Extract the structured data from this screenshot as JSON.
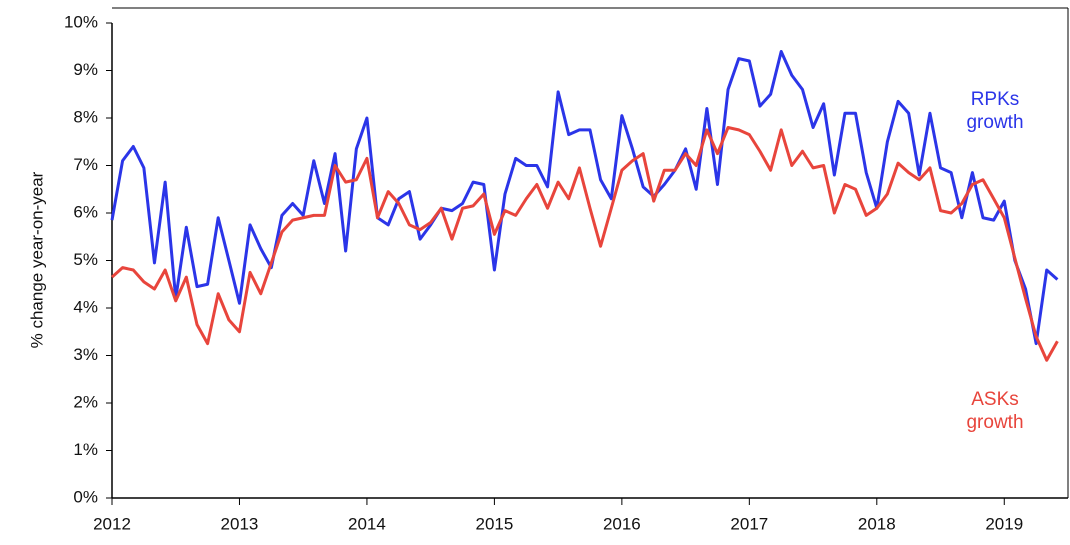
{
  "chart_data": {
    "type": "line",
    "y_label": "% change year-on-year",
    "x": [
      2012,
      2012.083,
      2012.167,
      2012.25,
      2012.333,
      2012.417,
      2012.5,
      2012.583,
      2012.667,
      2012.75,
      2012.833,
      2012.917,
      2013,
      2013.083,
      2013.167,
      2013.25,
      2013.333,
      2013.417,
      2013.5,
      2013.583,
      2013.667,
      2013.75,
      2013.833,
      2013.917,
      2014,
      2014.083,
      2014.167,
      2014.25,
      2014.333,
      2014.417,
      2014.5,
      2014.583,
      2014.667,
      2014.75,
      2014.833,
      2014.917,
      2015,
      2015.083,
      2015.167,
      2015.25,
      2015.333,
      2015.417,
      2015.5,
      2015.583,
      2015.667,
      2015.75,
      2015.833,
      2015.917,
      2016,
      2016.083,
      2016.167,
      2016.25,
      2016.333,
      2016.417,
      2016.5,
      2016.583,
      2016.667,
      2016.75,
      2016.833,
      2016.917,
      2017,
      2017.083,
      2017.167,
      2017.25,
      2017.333,
      2017.417,
      2017.5,
      2017.583,
      2017.667,
      2017.75,
      2017.833,
      2017.917,
      2018,
      2018.083,
      2018.167,
      2018.25,
      2018.333,
      2018.417,
      2018.5,
      2018.583,
      2018.667,
      2018.75,
      2018.833,
      2018.917,
      2019,
      2019.083,
      2019.167,
      2019.25,
      2019.333,
      2019.417
    ],
    "series": [
      {
        "name": "RPKs growth",
        "color": "#2b35e8",
        "values": [
          5.85,
          7.1,
          7.4,
          6.95,
          4.95,
          6.65,
          4.2,
          5.7,
          4.45,
          4.5,
          5.9,
          5.0,
          4.1,
          5.75,
          5.25,
          4.85,
          5.95,
          6.2,
          5.95,
          7.1,
          6.2,
          7.25,
          5.2,
          7.35,
          8.0,
          5.9,
          5.75,
          6.3,
          6.45,
          5.45,
          5.75,
          6.1,
          6.05,
          6.2,
          6.65,
          6.6,
          4.8,
          6.4,
          7.15,
          7.0,
          7.0,
          6.55,
          8.55,
          7.65,
          7.75,
          7.75,
          6.7,
          6.3,
          8.05,
          7.35,
          6.55,
          6.35,
          6.6,
          6.9,
          7.35,
          6.5,
          8.2,
          6.6,
          8.6,
          9.25,
          9.2,
          8.25,
          8.5,
          9.4,
          8.9,
          8.6,
          7.8,
          8.3,
          6.8,
          8.1,
          8.1,
          6.85,
          6.1,
          7.5,
          8.35,
          8.1,
          6.8,
          8.1,
          6.95,
          6.85,
          5.9,
          6.85,
          5.9,
          5.85,
          6.25,
          5.0,
          4.4,
          3.25,
          4.8,
          4.6
        ]
      },
      {
        "name": "ASKs growth",
        "color": "#e8453c",
        "values": [
          4.65,
          4.85,
          4.8,
          4.55,
          4.4,
          4.8,
          4.15,
          4.65,
          3.65,
          3.25,
          4.3,
          3.75,
          3.5,
          4.75,
          4.3,
          4.95,
          5.6,
          5.85,
          5.9,
          5.95,
          5.95,
          7.0,
          6.65,
          6.7,
          7.15,
          5.9,
          6.45,
          6.2,
          5.75,
          5.65,
          5.8,
          6.1,
          5.45,
          6.1,
          6.15,
          6.4,
          5.55,
          6.05,
          5.95,
          6.3,
          6.6,
          6.1,
          6.65,
          6.3,
          6.95,
          6.1,
          5.3,
          6.1,
          6.9,
          7.1,
          7.25,
          6.25,
          6.9,
          6.9,
          7.25,
          7.0,
          7.75,
          7.25,
          7.8,
          7.75,
          7.65,
          7.3,
          6.9,
          7.75,
          7.0,
          7.3,
          6.95,
          7.0,
          6.0,
          6.6,
          6.5,
          5.95,
          6.1,
          6.4,
          7.05,
          6.85,
          6.7,
          6.95,
          6.05,
          6.0,
          6.2,
          6.6,
          6.7,
          6.3,
          5.9,
          5.05,
          4.2,
          3.4,
          2.9,
          3.3
        ]
      }
    ],
    "xlim": [
      2012,
      2019.5
    ],
    "xticks": [
      2012,
      2013,
      2014,
      2015,
      2016,
      2017,
      2018,
      2019
    ],
    "ylim": [
      0,
      10
    ],
    "yticks": [
      {
        "value": 0,
        "label": "0%"
      },
      {
        "value": 1,
        "label": "1%"
      },
      {
        "value": 2,
        "label": "2%"
      },
      {
        "value": 3,
        "label": "3%"
      },
      {
        "value": 4,
        "label": "4%"
      },
      {
        "value": 5,
        "label": "5%"
      },
      {
        "value": 6,
        "label": "6%"
      },
      {
        "value": 7,
        "label": "7%"
      },
      {
        "value": 8,
        "label": "8%"
      },
      {
        "value": 9,
        "label": "9%"
      },
      {
        "value": 10,
        "label": "10%"
      }
    ],
    "grid": false
  }
}
